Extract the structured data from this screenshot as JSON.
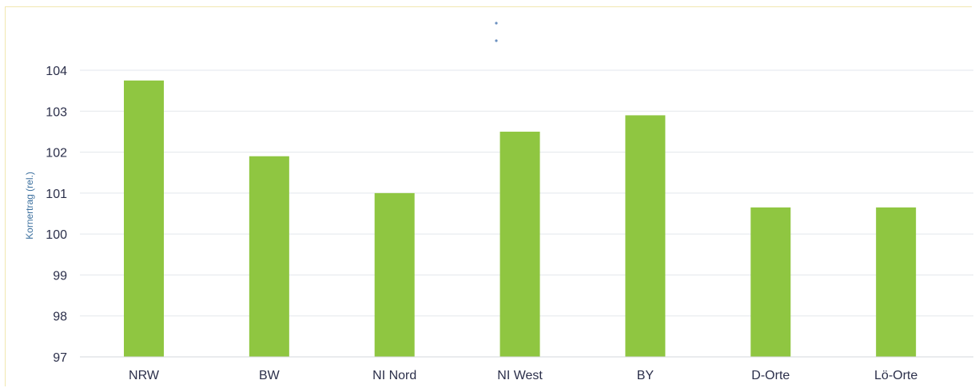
{
  "chart_data": {
    "type": "bar",
    "categories": [
      "NRW",
      "BW",
      "NI Nord",
      "NI West",
      "BY",
      "D-Orte",
      "Lö-Orte"
    ],
    "values": [
      103.75,
      101.9,
      101.0,
      102.5,
      102.9,
      100.65,
      100.65
    ],
    "ylabel": "Kornertrag (rel.)",
    "xlabel": "",
    "ylim": [
      97,
      104
    ],
    "yticks": [
      97,
      98,
      99,
      100,
      101,
      102,
      103,
      104
    ],
    "grid": true,
    "legend": "none",
    "colors": {
      "bar": "#8fc641",
      "axis_text": "#2b2f4a",
      "ylabel": "#3b6f9e"
    }
  }
}
